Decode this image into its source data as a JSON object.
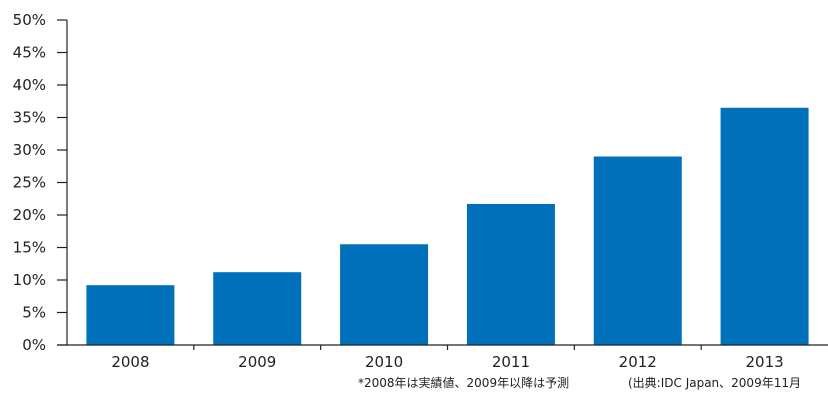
{
  "chart_data": {
    "type": "bar",
    "categories": [
      "2008",
      "2009",
      "2010",
      "2011",
      "2012",
      "2013"
    ],
    "values": [
      9.2,
      11.2,
      15.5,
      21.7,
      29.0,
      36.5
    ],
    "ylim": [
      0,
      50
    ],
    "yticks": [
      "0%",
      "5%",
      "10%",
      "15%",
      "20%",
      "25%",
      "30%",
      "35%",
      "40%",
      "45%",
      "50%"
    ],
    "bar_color": "#0070ba",
    "grid": false,
    "legend": "none"
  },
  "footnotes": {
    "left": "*2008年は実績値、2009年以降は予測",
    "right": "(出典:IDC Japan、2009年11月"
  }
}
